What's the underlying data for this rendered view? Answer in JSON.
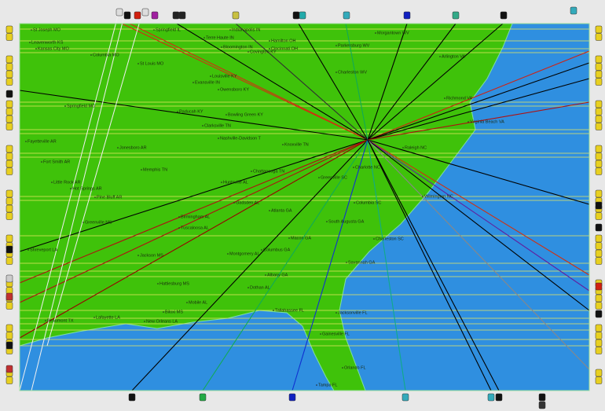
{
  "cities": [
    "St Joseph MO",
    "Leavenworth KS",
    "Kansas City MO",
    "Columbia MO",
    "St Louis MO",
    "Springfield IL",
    "Indianapolis IN",
    "Terre Haute IN",
    "Bloomington IN",
    "Hamilton OH",
    "Cincinnati OH",
    "Covington KY",
    "Morgantown WV",
    "Parkersburg WV",
    "Arlington VA",
    "Charleston WV",
    "Louisville KY",
    "Evansville IN",
    "Owensboro KY",
    "Springfield MO",
    "Paducah KY",
    "Bowling Green KY",
    "Richmond VA",
    "Virginia Beach VA",
    "Clarksville TN",
    "Nashville-Davidson T",
    "Knoxville TN",
    "Fayetteville AR",
    "Jonesboro AR",
    "Raleigh NC",
    "Fort Smith AR",
    "Memphis TN",
    "Chattanooga TN",
    "Charlotte NC",
    "Greenville SC",
    "Huntsville AL",
    "Little Rock AR",
    "Hot Springs AR",
    "Pine Bluff AR",
    "Wilmington NC",
    "Columbia SC",
    "Gadsden AL",
    "Atlanta GA",
    "Greenville MS",
    "Birmingham AL",
    "Tuscaloosa AL",
    "South Augusta GA",
    "Charleston SC",
    "Macon GA",
    "Shreveport LA",
    "Jackson MS",
    "Montgomery AL",
    "Columbus GA",
    "Savannah GA",
    "Albany GA",
    "Hattiesburg MS",
    "Dothan AL",
    "Mobile AL",
    "Biloxi MS",
    "Tallahassee FL",
    "Jacksonville FL",
    "Lafayette LA",
    "Beaumont TX",
    "New Orleans LA",
    "Gainesville FL",
    "Orlando FL",
    "Tampa FL"
  ]
}
